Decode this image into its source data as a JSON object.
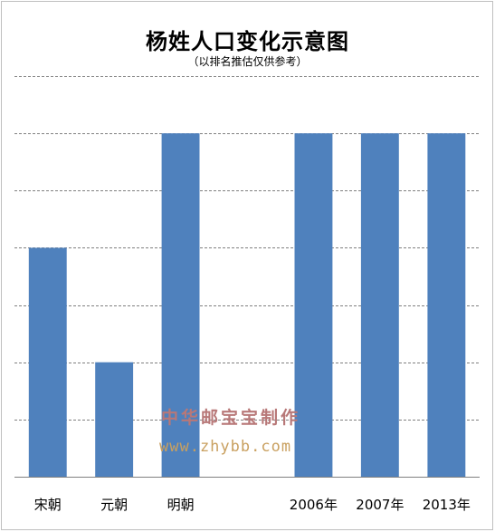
{
  "chart_data": {
    "type": "bar",
    "title": "杨姓人口变化示意图",
    "subtitle": "（以排名推估仅供参考）",
    "categories": [
      "宋朝",
      "元朝",
      "明朝",
      "",
      "2006年",
      "2007年",
      "2013年"
    ],
    "values": [
      4,
      2,
      6,
      null,
      6,
      6,
      6
    ],
    "ylim": [
      0,
      7
    ],
    "grid": true,
    "yticks_shown": false,
    "legend": "none",
    "bar_color": "#4f81bd",
    "grid_color": "#808080"
  },
  "watermark": {
    "line1": "中华邮宝宝制作",
    "line2": "www.zhybb.com"
  }
}
